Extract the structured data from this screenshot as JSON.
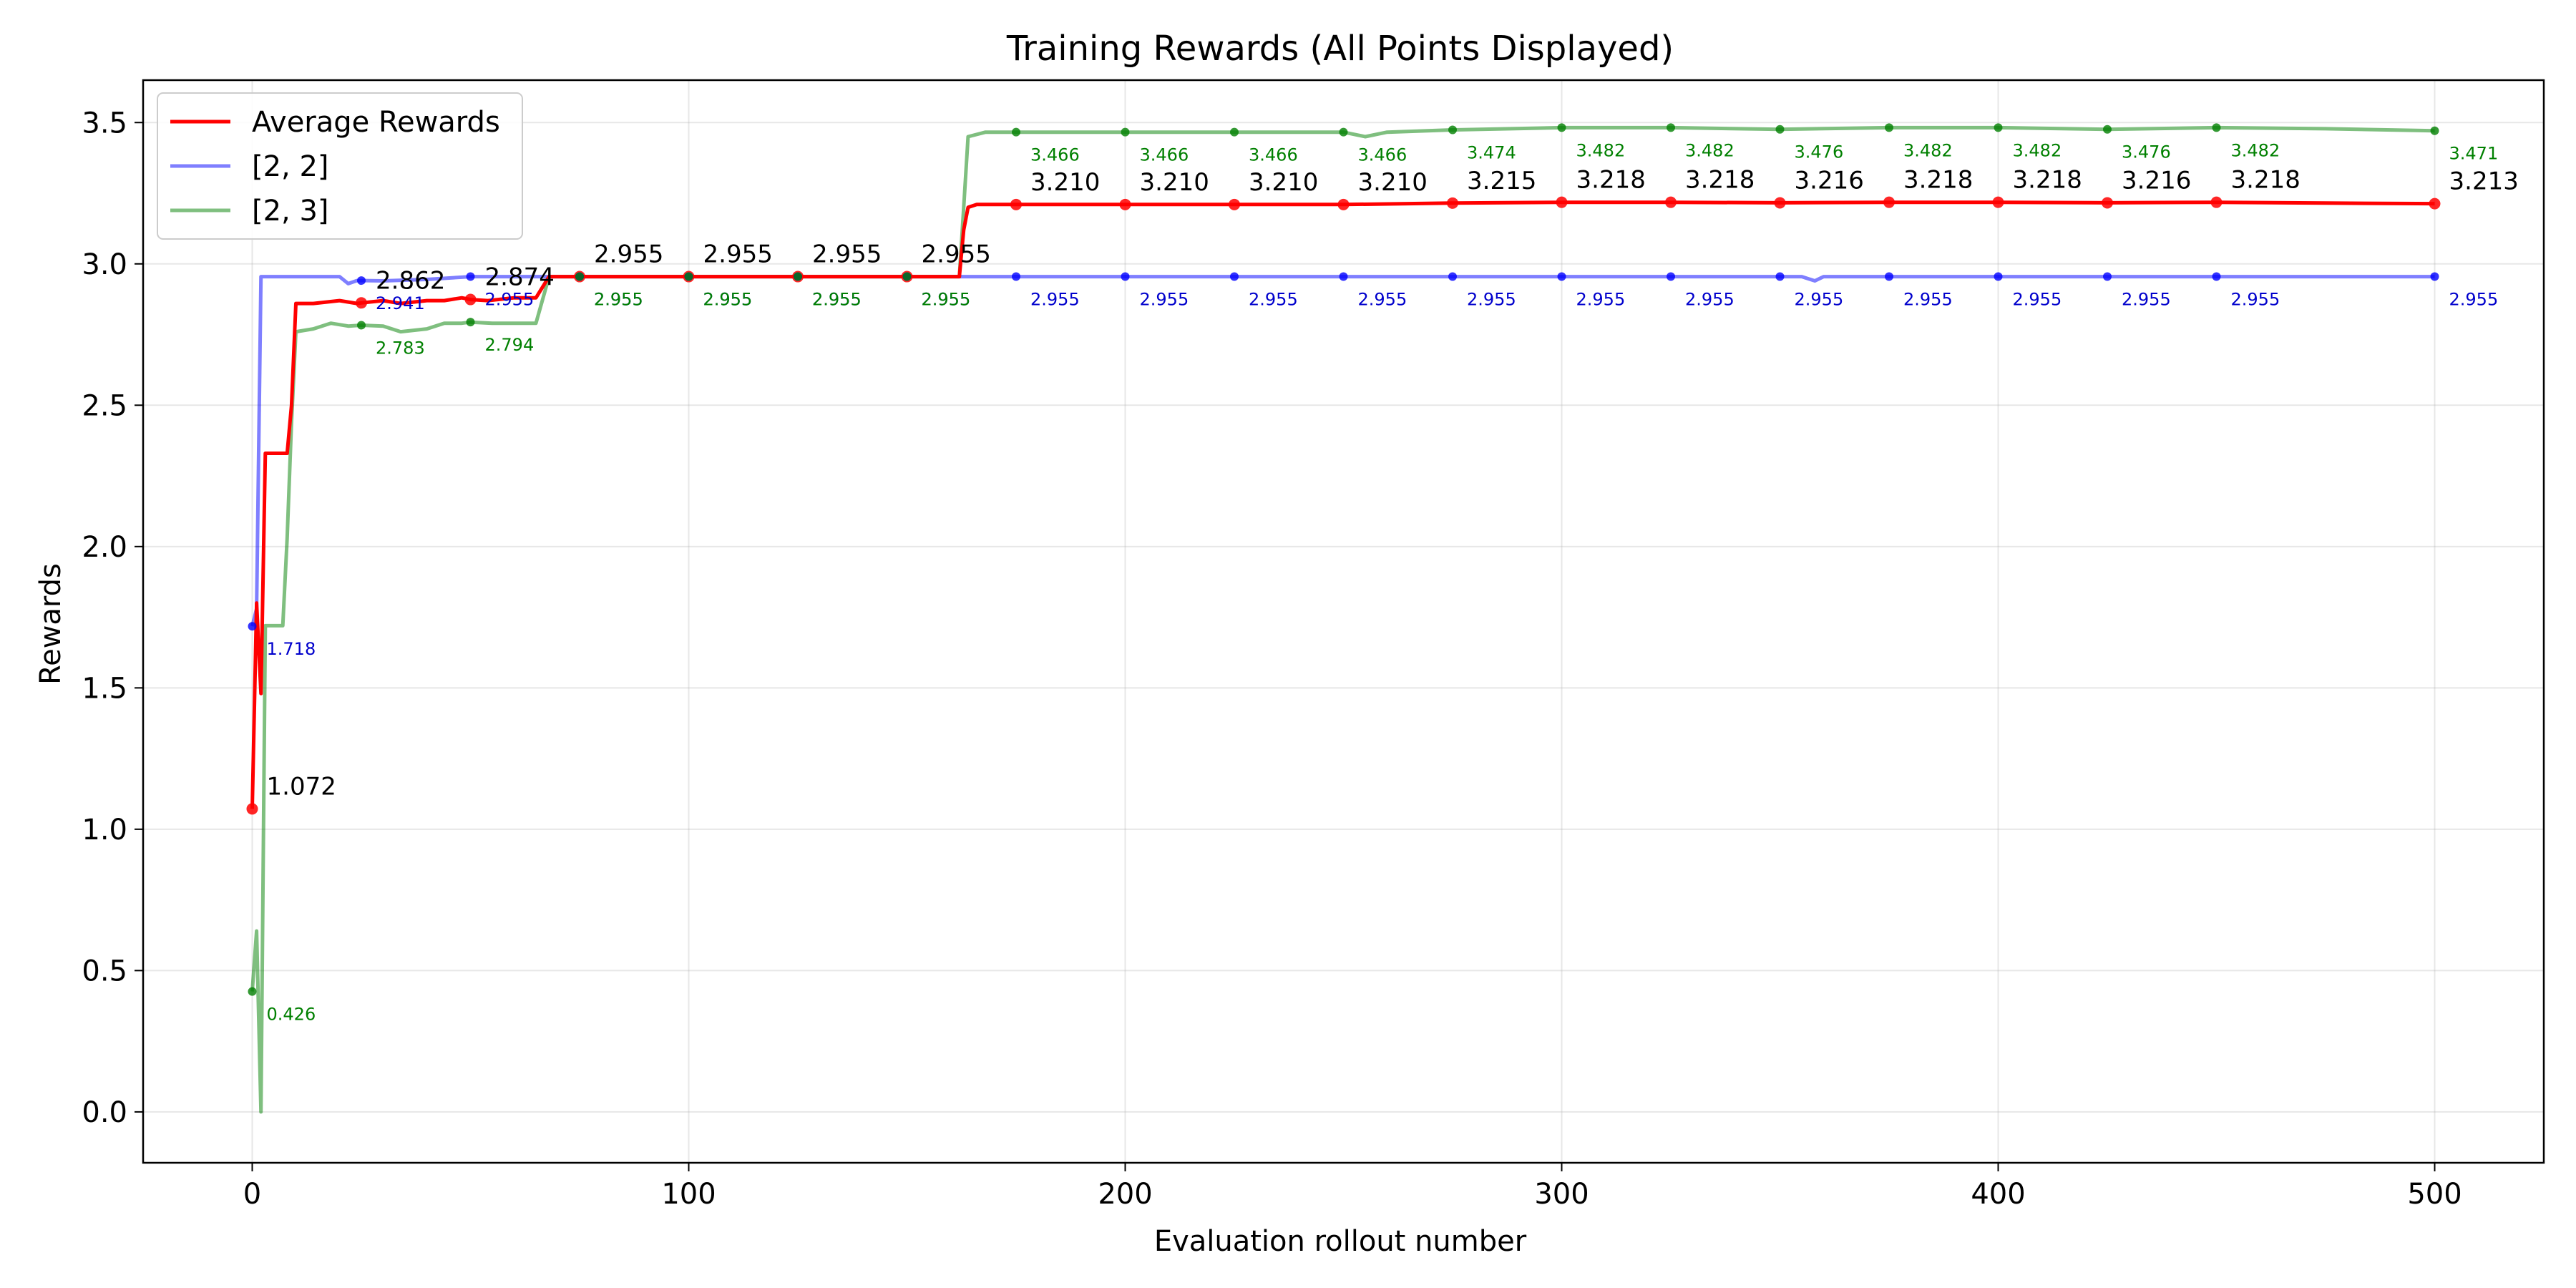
{
  "chart_data": {
    "type": "line",
    "title": "Training Rewards (All Points Displayed)",
    "xlabel": "Evaluation rollout number",
    "ylabel": "Rewards",
    "xlim": [
      -25,
      525
    ],
    "ylim": [
      -0.18,
      3.65
    ],
    "xticks": [
      0,
      100,
      200,
      300,
      400,
      500
    ],
    "yticks": [
      0.0,
      0.5,
      1.0,
      1.5,
      2.0,
      2.5,
      3.0,
      3.5
    ],
    "grid": true,
    "legend_position": "top-left",
    "series": [
      {
        "name": "Average Rewards",
        "color": "#ff0000",
        "opacity": 1.0,
        "x": [
          0,
          1,
          2,
          3,
          4,
          6,
          8,
          9,
          10,
          14,
          20,
          24,
          25,
          30,
          34,
          40,
          44,
          48,
          50,
          54,
          60,
          65,
          68,
          75,
          100,
          125,
          150,
          160,
          162,
          163,
          164,
          166,
          175,
          200,
          225,
          250,
          275,
          300,
          325,
          350,
          375,
          400,
          425,
          450,
          475,
          500
        ],
        "y": [
          1.072,
          1.8,
          1.48,
          2.33,
          2.33,
          2.33,
          2.33,
          2.5,
          2.86,
          2.86,
          2.87,
          2.86,
          2.862,
          2.87,
          2.86,
          2.87,
          2.87,
          2.88,
          2.874,
          2.87,
          2.88,
          2.88,
          2.955,
          2.955,
          2.955,
          2.955,
          2.955,
          2.955,
          2.955,
          3.12,
          3.2,
          3.21,
          3.21,
          3.21,
          3.21,
          3.21,
          3.215,
          3.218,
          3.218,
          3.216,
          3.218,
          3.218,
          3.216,
          3.218,
          3.215,
          3.213
        ]
      },
      {
        "name": "[2, 2]",
        "color": "#0000ff",
        "opacity": 0.5,
        "x": [
          0,
          1,
          2,
          10,
          15,
          20,
          22,
          24,
          25,
          30,
          40,
          50,
          55,
          60,
          65,
          68,
          100,
          150,
          175,
          200,
          250,
          300,
          330,
          355,
          358,
          360,
          365,
          400,
          450,
          500
        ],
        "y": [
          1.718,
          1.78,
          2.955,
          2.955,
          2.955,
          2.955,
          2.93,
          2.941,
          2.941,
          2.94,
          2.945,
          2.955,
          2.955,
          2.955,
          2.955,
          2.955,
          2.955,
          2.955,
          2.955,
          2.955,
          2.955,
          2.955,
          2.955,
          2.955,
          2.94,
          2.955,
          2.955,
          2.955,
          2.955,
          2.955
        ]
      },
      {
        "name": "[2, 3]",
        "color": "#008000",
        "opacity": 0.5,
        "x": [
          0,
          1,
          2,
          3,
          4,
          6,
          7,
          8,
          9,
          10,
          14,
          18,
          22,
          25,
          30,
          34,
          40,
          44,
          48,
          50,
          55,
          60,
          65,
          68,
          75,
          100,
          125,
          150,
          162,
          163,
          164,
          168,
          175,
          200,
          225,
          250,
          255,
          260,
          275,
          300,
          325,
          350,
          375,
          400,
          425,
          450,
          475,
          500
        ],
        "y": [
          0.426,
          0.64,
          0.0,
          1.72,
          1.72,
          1.72,
          1.72,
          2.03,
          2.44,
          2.76,
          2.77,
          2.79,
          2.78,
          2.783,
          2.78,
          2.76,
          2.77,
          2.79,
          2.79,
          2.794,
          2.79,
          2.79,
          2.79,
          2.955,
          2.955,
          2.955,
          2.955,
          2.955,
          2.955,
          3.2,
          3.45,
          3.466,
          3.466,
          3.466,
          3.466,
          3.466,
          3.45,
          3.466,
          3.474,
          3.482,
          3.482,
          3.476,
          3.482,
          3.482,
          3.476,
          3.482,
          3.478,
          3.471
        ]
      }
    ],
    "markers": [
      {
        "series": 0,
        "x": [
          0,
          25,
          50,
          75,
          100,
          125,
          150,
          175,
          200,
          225,
          250,
          275,
          300,
          325,
          350,
          375,
          400,
          425,
          450,
          500
        ],
        "y": [
          1.072,
          2.862,
          2.874,
          2.955,
          2.955,
          2.955,
          2.955,
          3.21,
          3.21,
          3.21,
          3.21,
          3.215,
          3.218,
          3.218,
          3.216,
          3.218,
          3.218,
          3.216,
          3.218,
          3.213
        ]
      },
      {
        "series": 1,
        "x": [
          0,
          25,
          50,
          75,
          100,
          125,
          150,
          175,
          200,
          225,
          250,
          275,
          300,
          325,
          350,
          375,
          400,
          425,
          450,
          500
        ],
        "y": [
          1.718,
          2.941,
          2.955,
          2.955,
          2.955,
          2.955,
          2.955,
          2.955,
          2.955,
          2.955,
          2.955,
          2.955,
          2.955,
          2.955,
          2.955,
          2.955,
          2.955,
          2.955,
          2.955,
          2.955
        ]
      },
      {
        "series": 2,
        "x": [
          0,
          25,
          50,
          75,
          100,
          125,
          150,
          175,
          200,
          225,
          250,
          275,
          300,
          325,
          350,
          375,
          400,
          425,
          450,
          500
        ],
        "y": [
          0.426,
          2.783,
          2.794,
          2.955,
          2.955,
          2.955,
          2.955,
          3.466,
          3.466,
          3.466,
          3.466,
          3.474,
          3.482,
          3.482,
          3.476,
          3.482,
          3.482,
          3.476,
          3.482,
          3.471
        ]
      }
    ],
    "annotations": {
      "average": [
        {
          "x": 0,
          "y": 1.072,
          "text": "1.072"
        },
        {
          "x": 25,
          "y": 2.862,
          "text": "2.862"
        },
        {
          "x": 50,
          "y": 2.874,
          "text": "2.874"
        },
        {
          "x": 75,
          "y": 2.955,
          "text": "2.955"
        },
        {
          "x": 100,
          "y": 2.955,
          "text": "2.955"
        },
        {
          "x": 125,
          "y": 2.955,
          "text": "2.955"
        },
        {
          "x": 150,
          "y": 2.955,
          "text": "2.955"
        },
        {
          "x": 175,
          "y": 3.21,
          "text": "3.210"
        },
        {
          "x": 200,
          "y": 3.21,
          "text": "3.210"
        },
        {
          "x": 225,
          "y": 3.21,
          "text": "3.210"
        },
        {
          "x": 250,
          "y": 3.21,
          "text": "3.210"
        },
        {
          "x": 275,
          "y": 3.215,
          "text": "3.215"
        },
        {
          "x": 300,
          "y": 3.218,
          "text": "3.218"
        },
        {
          "x": 325,
          "y": 3.218,
          "text": "3.218"
        },
        {
          "x": 350,
          "y": 3.216,
          "text": "3.216"
        },
        {
          "x": 375,
          "y": 3.218,
          "text": "3.218"
        },
        {
          "x": 400,
          "y": 3.218,
          "text": "3.218"
        },
        {
          "x": 425,
          "y": 3.216,
          "text": "3.216"
        },
        {
          "x": 450,
          "y": 3.218,
          "text": "3.218"
        },
        {
          "x": 500,
          "y": 3.213,
          "text": "3.213"
        }
      ],
      "series_1": [
        {
          "x": 0,
          "y": 1.718,
          "text": "1.718"
        },
        {
          "x": 25,
          "y": 2.941,
          "text": "2.941"
        },
        {
          "x": 50,
          "y": 2.955,
          "text": "2.955"
        },
        {
          "x": 75,
          "y": 2.955,
          "text": "2.955"
        },
        {
          "x": 100,
          "y": 2.955,
          "text": "2.955"
        },
        {
          "x": 125,
          "y": 2.955,
          "text": "2.955"
        },
        {
          "x": 150,
          "y": 2.955,
          "text": "2.955"
        },
        {
          "x": 175,
          "y": 2.955,
          "text": "2.955"
        },
        {
          "x": 200,
          "y": 2.955,
          "text": "2.955"
        },
        {
          "x": 225,
          "y": 2.955,
          "text": "2.955"
        },
        {
          "x": 250,
          "y": 2.955,
          "text": "2.955"
        },
        {
          "x": 275,
          "y": 2.955,
          "text": "2.955"
        },
        {
          "x": 300,
          "y": 2.955,
          "text": "2.955"
        },
        {
          "x": 325,
          "y": 2.955,
          "text": "2.955"
        },
        {
          "x": 350,
          "y": 2.955,
          "text": "2.955"
        },
        {
          "x": 375,
          "y": 2.955,
          "text": "2.955"
        },
        {
          "x": 400,
          "y": 2.955,
          "text": "2.955"
        },
        {
          "x": 425,
          "y": 2.955,
          "text": "2.955"
        },
        {
          "x": 450,
          "y": 2.955,
          "text": "2.955"
        },
        {
          "x": 500,
          "y": 2.955,
          "text": "2.955"
        }
      ],
      "series_2": [
        {
          "x": 0,
          "y": 0.426,
          "text": "0.426"
        },
        {
          "x": 25,
          "y": 2.783,
          "text": "2.783"
        },
        {
          "x": 50,
          "y": 2.794,
          "text": "2.794"
        },
        {
          "x": 75,
          "y": 2.955,
          "text": "2.955"
        },
        {
          "x": 100,
          "y": 2.955,
          "text": "2.955"
        },
        {
          "x": 125,
          "y": 2.955,
          "text": "2.955"
        },
        {
          "x": 150,
          "y": 2.955,
          "text": "2.955"
        },
        {
          "x": 175,
          "y": 3.466,
          "text": "3.466"
        },
        {
          "x": 200,
          "y": 3.466,
          "text": "3.466"
        },
        {
          "x": 225,
          "y": 3.466,
          "text": "3.466"
        },
        {
          "x": 250,
          "y": 3.466,
          "text": "3.466"
        },
        {
          "x": 275,
          "y": 3.474,
          "text": "3.474"
        },
        {
          "x": 300,
          "y": 3.482,
          "text": "3.482"
        },
        {
          "x": 325,
          "y": 3.482,
          "text": "3.482"
        },
        {
          "x": 350,
          "y": 3.476,
          "text": "3.476"
        },
        {
          "x": 375,
          "y": 3.482,
          "text": "3.482"
        },
        {
          "x": 400,
          "y": 3.482,
          "text": "3.482"
        },
        {
          "x": 425,
          "y": 3.476,
          "text": "3.476"
        },
        {
          "x": 450,
          "y": 3.482,
          "text": "3.482"
        },
        {
          "x": 500,
          "y": 3.471,
          "text": "3.471"
        }
      ]
    }
  }
}
